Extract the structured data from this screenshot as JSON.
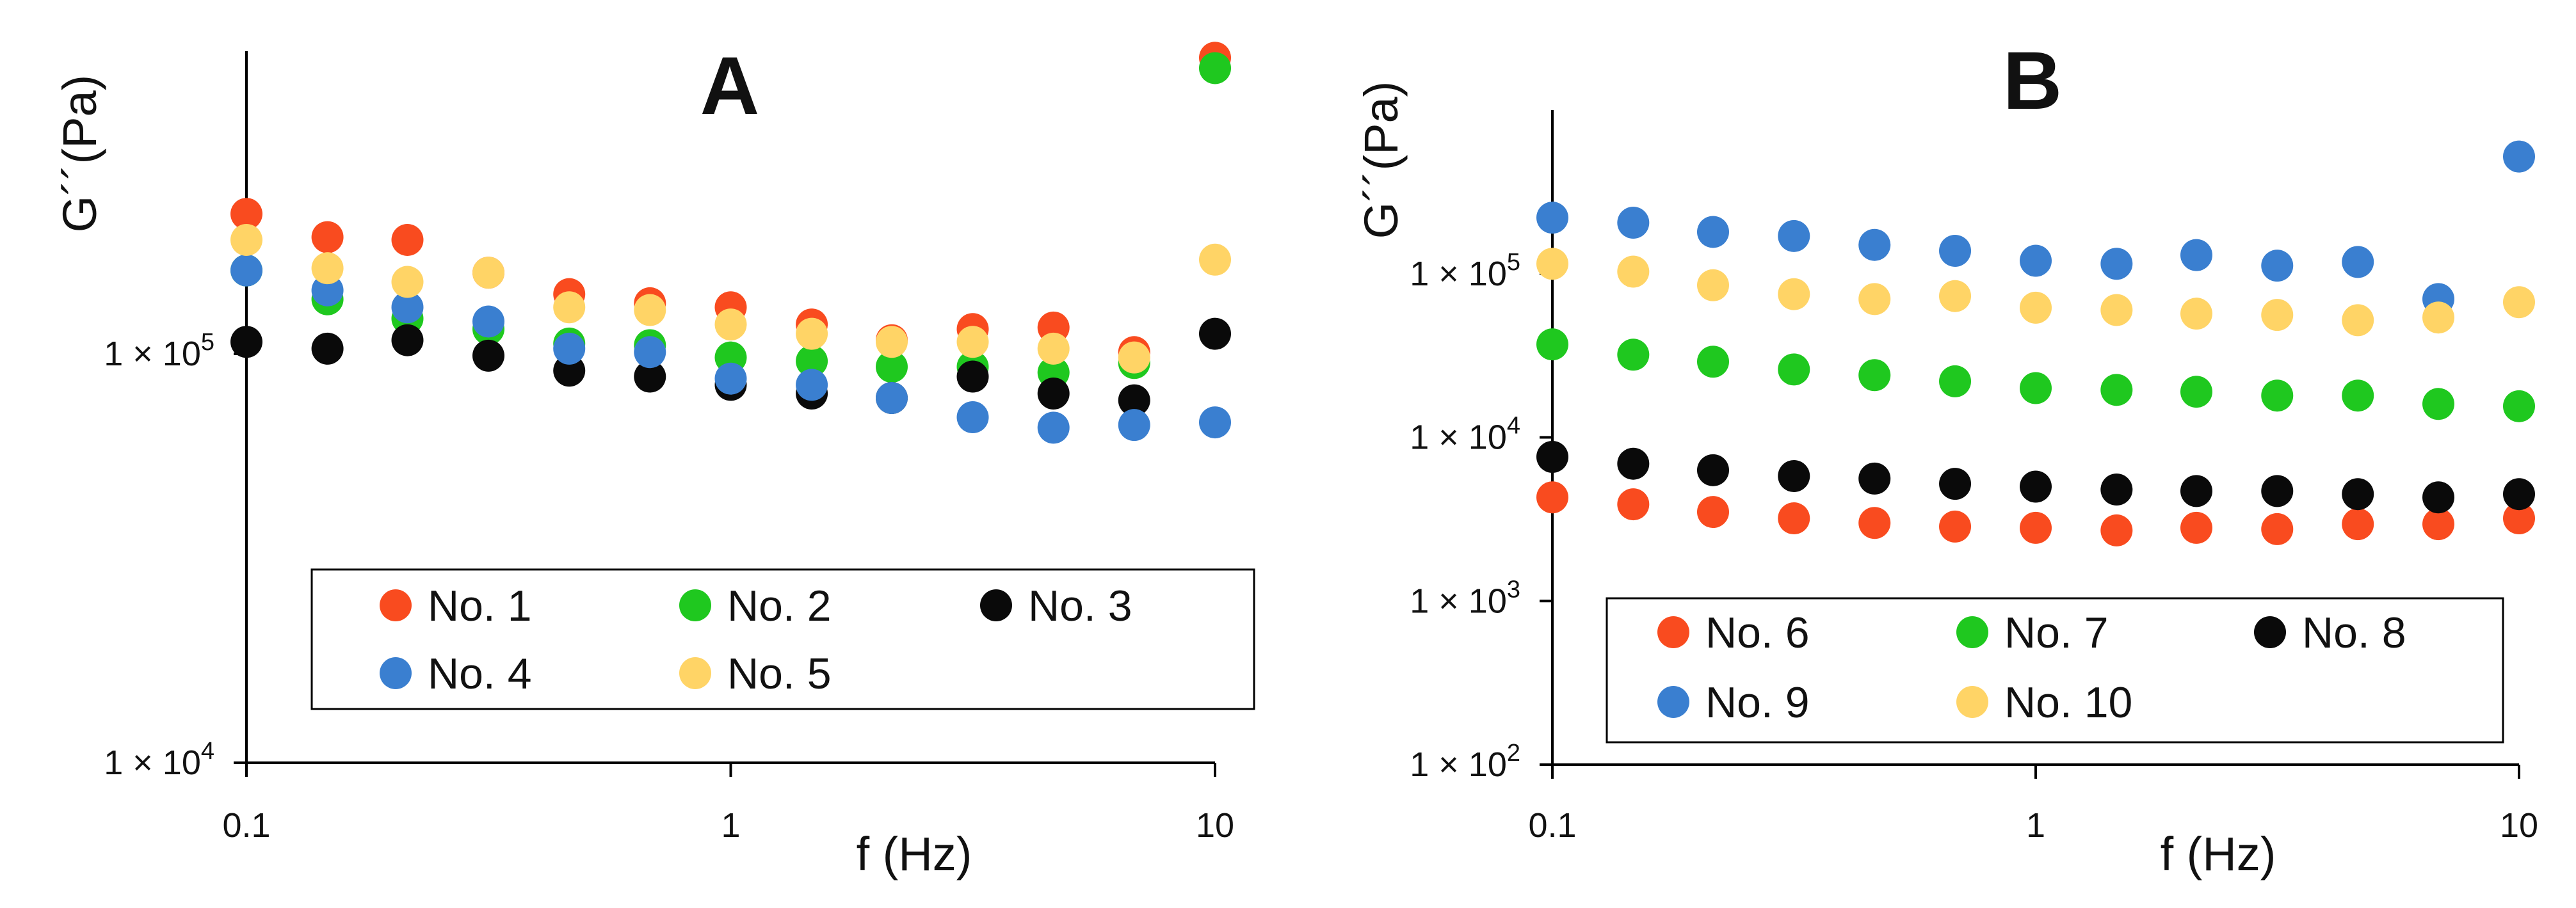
{
  "chart_data": [
    {
      "type": "scatter",
      "title": "A",
      "xlabel": "f (Hz)",
      "ylabel": "G´´(Pa)",
      "x_scale": "log",
      "y_scale": "log",
      "xlim": [
        0.1,
        10
      ],
      "ylim": [
        10000,
        550000
      ],
      "x_ticks": [
        "0.1",
        "1",
        "10"
      ],
      "y_ticks": [
        {
          "value": 100000,
          "base": "1 × 10",
          "exp": "5"
        },
        {
          "value": 10000,
          "base": "1 × 10",
          "exp": "4"
        }
      ],
      "grid": false,
      "legend_position": "bottom",
      "x": [
        0.1,
        0.147,
        0.215,
        0.316,
        0.464,
        0.681,
        1.0,
        1.47,
        2.15,
        3.16,
        4.64,
        6.81,
        10.0
      ],
      "series": [
        {
          "name": "No. 1",
          "color": "#f94b1f",
          "values": [
            220000,
            193000,
            190000,
            158000,
            140000,
            133000,
            130000,
            118000,
            108000,
            115000,
            116000,
            101000,
            530000
          ]
        },
        {
          "name": "No. 2",
          "color": "#1fc81f",
          "values": [
            160000,
            136000,
            122000,
            115000,
            106000,
            105000,
            98000,
            96000,
            93000,
            93000,
            90000,
            95000,
            500000
          ]
        },
        {
          "name": "No. 3",
          "color": "#0a0a0a",
          "values": [
            107000,
            103000,
            108000,
            99000,
            91000,
            88000,
            84000,
            80000,
            78000,
            88000,
            80000,
            77000,
            112000
          ]
        },
        {
          "name": "No. 4",
          "color": "#3a7fd0",
          "values": [
            160000,
            143000,
            130000,
            120000,
            103000,
            101000,
            87000,
            84000,
            78000,
            70000,
            66000,
            67000,
            68000
          ]
        },
        {
          "name": "No. 5",
          "color": "#ffd466",
          "values": [
            190000,
            162000,
            150000,
            158000,
            130000,
            128000,
            118000,
            112000,
            107000,
            107000,
            103000,
            98000,
            170000
          ]
        }
      ]
    },
    {
      "type": "scatter",
      "title": "B",
      "xlabel": "f (Hz)",
      "ylabel": "G´´(Pa)",
      "x_scale": "log",
      "y_scale": "log",
      "xlim": [
        0.1,
        10
      ],
      "ylim": [
        100,
        1000000
      ],
      "x_ticks": [
        "0.1",
        "1",
        "10"
      ],
      "y_ticks": [
        {
          "value": 100000,
          "base": "1 × 10",
          "exp": "5"
        },
        {
          "value": 10000,
          "base": "1 × 10",
          "exp": "4"
        },
        {
          "value": 1000,
          "base": "1 × 10",
          "exp": "3"
        },
        {
          "value": 100,
          "base": "1 × 10",
          "exp": "2"
        }
      ],
      "grid": false,
      "legend_position": "bottom",
      "x": [
        0.1,
        0.147,
        0.215,
        0.316,
        0.464,
        0.681,
        1.0,
        1.47,
        2.15,
        3.16,
        4.64,
        6.81,
        10.0
      ],
      "series": [
        {
          "name": "No. 6",
          "color": "#f94b1f",
          "values": [
            4300,
            3900,
            3500,
            3200,
            3000,
            2850,
            2800,
            2700,
            2800,
            2750,
            2950,
            2950,
            3200
          ]
        },
        {
          "name": "No. 7",
          "color": "#1fc81f",
          "values": [
            37000,
            32000,
            29000,
            26000,
            24000,
            22000,
            20000,
            19500,
            19000,
            18000,
            18000,
            16000,
            15500
          ]
        },
        {
          "name": "No. 8",
          "color": "#0a0a0a",
          "values": [
            7600,
            6900,
            6300,
            5800,
            5600,
            5200,
            5000,
            4800,
            4700,
            4700,
            4500,
            4300,
            4500
          ]
        },
        {
          "name": "No. 9",
          "color": "#3a7fd0",
          "values": [
            220000,
            205000,
            180000,
            170000,
            150000,
            138000,
            120000,
            115000,
            130000,
            112000,
            118000,
            70000,
            520000
          ]
        },
        {
          "name": "No. 10",
          "color": "#ffd466",
          "values": [
            115000,
            103000,
            85000,
            75000,
            70000,
            73000,
            62000,
            60000,
            57000,
            56000,
            52000,
            54000,
            67000
          ]
        }
      ]
    }
  ]
}
